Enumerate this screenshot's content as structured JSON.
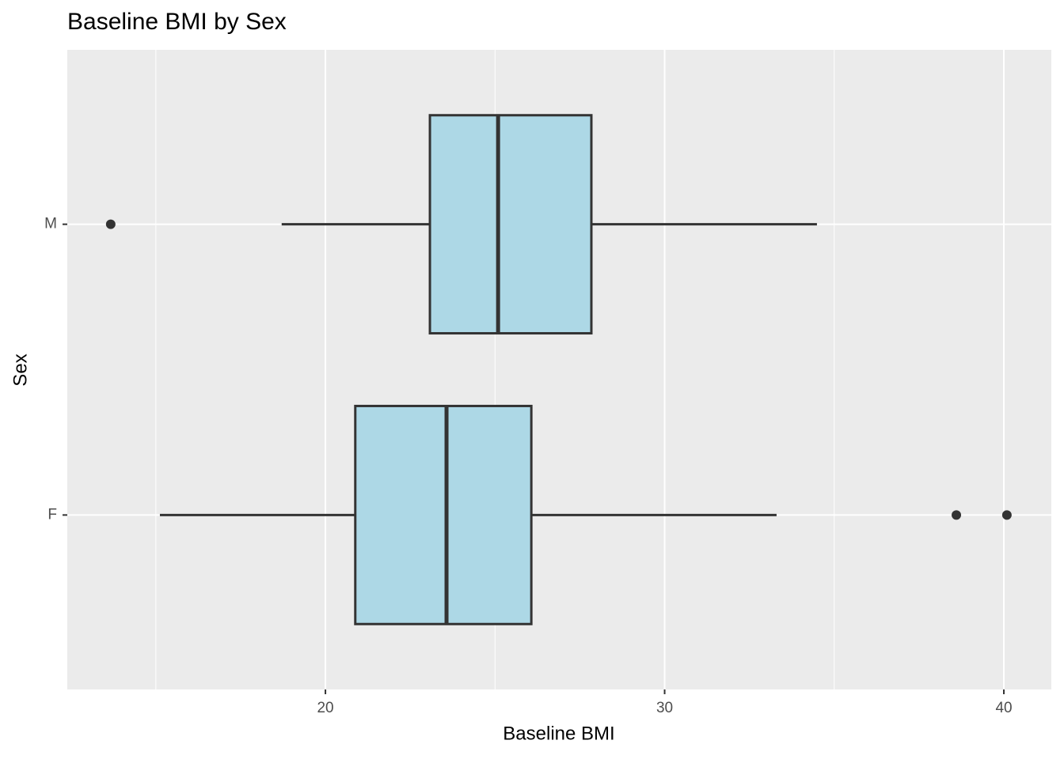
{
  "chart_data": {
    "type": "boxplot",
    "orientation": "horizontal",
    "title": "Baseline BMI by Sex",
    "x_label": "Baseline BMI",
    "y_label": "Sex",
    "categories": [
      "F",
      "M"
    ],
    "boxes": [
      {
        "min": 15.12,
        "q1": 20.88,
        "median": 23.57,
        "q3": 26.07,
        "max": 33.3,
        "outliers": [
          38.6,
          40.09
        ]
      },
      {
        "min": 18.71,
        "q1": 23.08,
        "median": 25.09,
        "q3": 27.84,
        "max": 34.49,
        "outliers": [
          13.67
        ]
      }
    ],
    "color": "#add8e6",
    "xlim": [
      12.39,
      41.4
    ],
    "xticks": [
      20,
      30,
      40
    ],
    "xminorticks": [
      15,
      25,
      35
    ],
    "grid": true
  }
}
